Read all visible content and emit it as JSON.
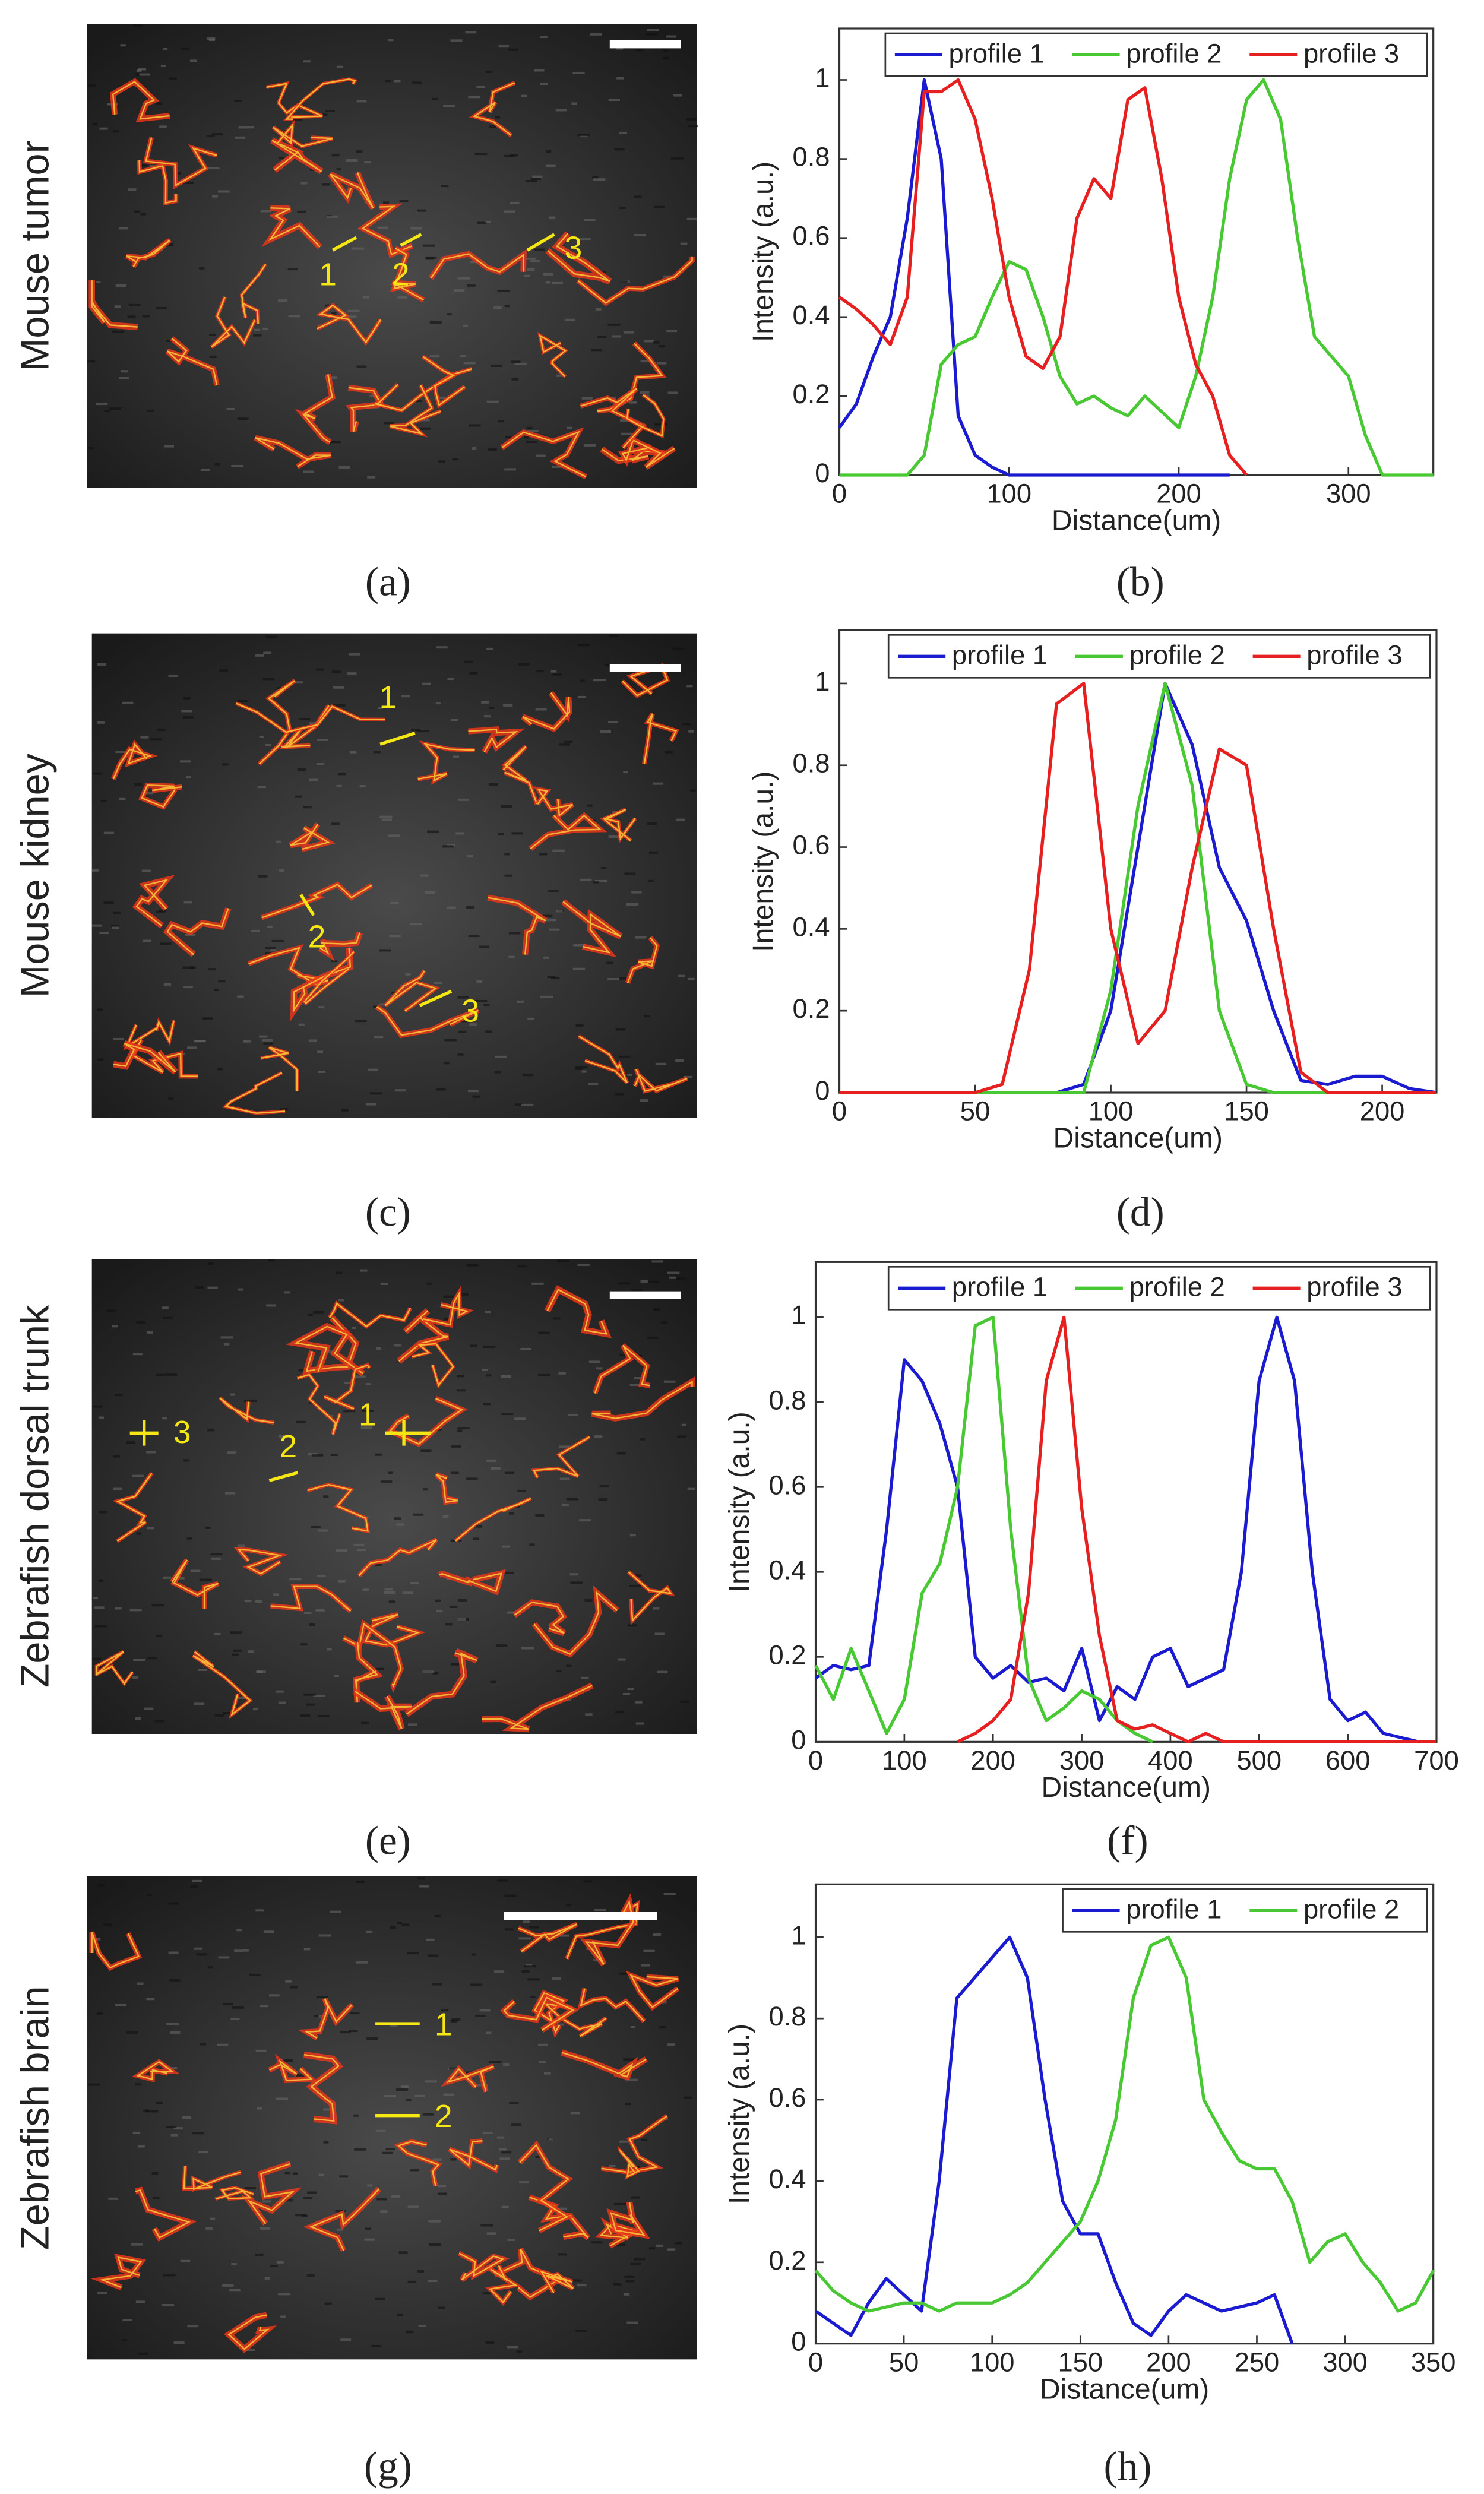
{
  "images": [
    {
      "side_label": "Mouse tumor",
      "panel_label": "(a)",
      "markers": [
        "1",
        "2",
        "3"
      ]
    },
    {
      "side_label": "Mouse kidney",
      "panel_label": "(c)",
      "markers": [
        "1",
        "2",
        "3"
      ]
    },
    {
      "side_label": "Zebrafish dorsal trunk",
      "panel_label": "(e)",
      "markers": [
        "1",
        "2",
        "3"
      ]
    },
    {
      "side_label": "Zebrafish brain",
      "panel_label": "(g)",
      "markers": [
        "1",
        "2"
      ]
    }
  ],
  "chart_data": [
    {
      "type": "line",
      "panel_label": "(b)",
      "xlabel": "Distance(um)",
      "ylabel": "Intensity (a.u.)",
      "x": [
        0,
        10,
        20,
        30,
        40,
        50,
        60,
        70,
        80,
        90,
        100,
        110,
        120,
        130,
        140,
        150,
        160,
        170,
        180,
        190,
        200,
        210,
        220,
        230,
        240,
        250,
        260,
        270,
        280,
        290,
        300,
        310,
        320,
        330,
        340,
        350
      ],
      "series": [
        {
          "name": "profile 1",
          "color": "#1a1ad0",
          "values": [
            0.12,
            0.18,
            0.3,
            0.4,
            0.65,
            1.0,
            0.8,
            0.15,
            0.05,
            0.02,
            0,
            0,
            0,
            0,
            0,
            0,
            0,
            0,
            0,
            0,
            0,
            0,
            0,
            0,
            null,
            null,
            null,
            null,
            null,
            null,
            null,
            null,
            null,
            null,
            null,
            null
          ]
        },
        {
          "name": "profile 2",
          "color": "#48c832",
          "values": [
            0,
            0,
            0,
            0,
            0,
            0.05,
            0.28,
            0.33,
            0.35,
            0.45,
            0.54,
            0.52,
            0.4,
            0.25,
            0.18,
            0.2,
            0.17,
            0.15,
            0.2,
            0.16,
            0.12,
            0.25,
            0.45,
            0.75,
            0.95,
            1.0,
            0.9,
            0.6,
            0.35,
            0.3,
            0.25,
            0.1,
            0,
            0,
            0,
            0
          ]
        },
        {
          "name": "profile 3",
          "color": "#e62020",
          "values": [
            0.45,
            0.42,
            0.38,
            0.33,
            0.45,
            0.97,
            0.97,
            1.0,
            0.9,
            0.7,
            0.45,
            0.3,
            0.27,
            0.35,
            0.65,
            0.75,
            0.7,
            0.95,
            0.98,
            0.75,
            0.45,
            0.28,
            0.2,
            0.05,
            0,
            null,
            null,
            null,
            null,
            null,
            null,
            null,
            null,
            null,
            null,
            null
          ]
        }
      ],
      "xlim": [
        0,
        350
      ],
      "xticks": [
        0,
        100,
        200,
        300
      ],
      "ylim": [
        0,
        1.13
      ],
      "yticks": [
        0,
        0.2,
        0.4,
        0.6,
        0.8,
        1
      ],
      "legend": "top-right"
    },
    {
      "type": "line",
      "panel_label": "(d)",
      "xlabel": "Distance(um)",
      "ylabel": "Intensity (a.u.)",
      "x": [
        0,
        10,
        20,
        30,
        40,
        50,
        60,
        70,
        80,
        90,
        100,
        110,
        120,
        130,
        140,
        150,
        160,
        170,
        180,
        190,
        200,
        210,
        220
      ],
      "series": [
        {
          "name": "profile 1",
          "color": "#1a1ad0",
          "values": [
            0,
            0,
            0,
            0,
            0,
            0,
            0,
            0,
            0,
            0.02,
            0.2,
            0.6,
            1.0,
            0.85,
            0.55,
            0.42,
            0.2,
            0.03,
            0.02,
            0.04,
            0.04,
            0.01,
            0
          ]
        },
        {
          "name": "profile 2",
          "color": "#48c832",
          "values": [
            0,
            0,
            0,
            0,
            0,
            0,
            0,
            0,
            0,
            0,
            0.25,
            0.7,
            1.0,
            0.75,
            0.2,
            0.02,
            0,
            0,
            0,
            0,
            0,
            0,
            0
          ]
        },
        {
          "name": "profile 3",
          "color": "#e62020",
          "values": [
            0,
            0,
            0,
            0,
            0,
            0,
            0.02,
            0.3,
            0.95,
            1.0,
            0.4,
            0.12,
            0.2,
            0.55,
            0.84,
            0.8,
            0.4,
            0.05,
            0,
            0,
            0,
            0,
            0
          ]
        }
      ],
      "xlim": [
        0,
        220
      ],
      "xticks": [
        0,
        50,
        100,
        150,
        200
      ],
      "ylim": [
        0,
        1.13
      ],
      "yticks": [
        0,
        0.2,
        0.4,
        0.6,
        0.8,
        1
      ],
      "legend": "top-right"
    },
    {
      "type": "line",
      "panel_label": "(f)",
      "xlabel": "Distance(um)",
      "ylabel": "Intensity (a.u.)",
      "x": [
        0,
        20,
        40,
        60,
        80,
        100,
        120,
        140,
        160,
        180,
        200,
        220,
        240,
        260,
        280,
        300,
        320,
        340,
        360,
        380,
        400,
        420,
        440,
        460,
        480,
        500,
        520,
        540,
        560,
        580,
        600,
        620,
        640,
        660,
        680,
        700
      ],
      "series": [
        {
          "name": "profile 1",
          "color": "#1a1ad0",
          "values": [
            0.15,
            0.18,
            0.17,
            0.18,
            0.5,
            0.9,
            0.85,
            0.75,
            0.6,
            0.2,
            0.15,
            0.18,
            0.14,
            0.15,
            0.12,
            0.22,
            0.05,
            0.13,
            0.1,
            0.2,
            0.22,
            0.13,
            0.15,
            0.17,
            0.4,
            0.85,
            1.0,
            0.85,
            0.4,
            0.1,
            0.05,
            0.07,
            0.02,
            0.01,
            0,
            0
          ]
        },
        {
          "name": "profile 2",
          "color": "#48c832",
          "values": [
            0.18,
            0.1,
            0.22,
            0.12,
            0.02,
            0.1,
            0.35,
            0.42,
            0.6,
            0.98,
            1.0,
            0.5,
            0.15,
            0.05,
            0.08,
            0.12,
            0.1,
            0.05,
            0.02,
            0,
            null,
            null,
            null,
            null,
            null,
            null,
            null,
            null,
            null,
            null,
            null,
            null,
            null,
            null,
            null,
            null
          ]
        },
        {
          "name": "profile 3",
          "color": "#e62020",
          "values": [
            null,
            null,
            null,
            null,
            null,
            null,
            null,
            null,
            0,
            0.02,
            0.05,
            0.1,
            0.35,
            0.85,
            1.0,
            0.55,
            0.25,
            0.05,
            0.03,
            0.04,
            0.02,
            0,
            0.02,
            0,
            0,
            0,
            0,
            0,
            0,
            0,
            0,
            0,
            0,
            0,
            0,
            0
          ]
        }
      ],
      "xlim": [
        0,
        700
      ],
      "xticks": [
        0,
        100,
        200,
        300,
        400,
        500,
        600,
        700
      ],
      "ylim": [
        0,
        1.13
      ],
      "yticks": [
        0,
        0.2,
        0.4,
        0.6,
        0.8,
        1
      ],
      "legend": "top-right"
    },
    {
      "type": "line",
      "panel_label": "(h)",
      "xlabel": "Distance(um)",
      "ylabel": "Intensity (a.u.)",
      "x": [
        0,
        10,
        20,
        30,
        40,
        50,
        60,
        70,
        80,
        90,
        100,
        110,
        120,
        130,
        140,
        150,
        160,
        170,
        180,
        190,
        200,
        210,
        220,
        230,
        240,
        250,
        260,
        270,
        280,
        290,
        300,
        310,
        320,
        330,
        340,
        350
      ],
      "series": [
        {
          "name": "profile 1",
          "color": "#1a1ad0",
          "values": [
            0.08,
            0.05,
            0.02,
            0.1,
            0.16,
            0.12,
            0.08,
            0.4,
            0.85,
            0.9,
            0.95,
            1.0,
            0.9,
            0.6,
            0.35,
            0.27,
            0.27,
            0.15,
            0.05,
            0.02,
            0.08,
            0.12,
            0.1,
            0.08,
            0.09,
            0.1,
            0.12,
            0,
            null,
            null,
            null,
            null,
            null,
            null,
            null,
            null
          ]
        },
        {
          "name": "profile 2",
          "color": "#48c832",
          "values": [
            0.18,
            0.13,
            0.1,
            0.08,
            0.09,
            0.1,
            0.1,
            0.08,
            0.1,
            0.1,
            0.1,
            0.12,
            0.15,
            0.2,
            0.25,
            0.3,
            0.4,
            0.55,
            0.85,
            0.98,
            1.0,
            0.9,
            0.6,
            0.52,
            0.45,
            0.43,
            0.43,
            0.35,
            0.2,
            0.25,
            0.27,
            0.2,
            0.15,
            0.08,
            0.1,
            0.18
          ]
        }
      ],
      "xlim": [
        0,
        350
      ],
      "xticks": [
        0,
        50,
        100,
        150,
        200,
        250,
        300,
        350
      ],
      "ylim": [
        0,
        1.13
      ],
      "yticks": [
        0,
        0.2,
        0.4,
        0.6,
        0.8,
        1
      ],
      "legend": "top-right"
    }
  ]
}
